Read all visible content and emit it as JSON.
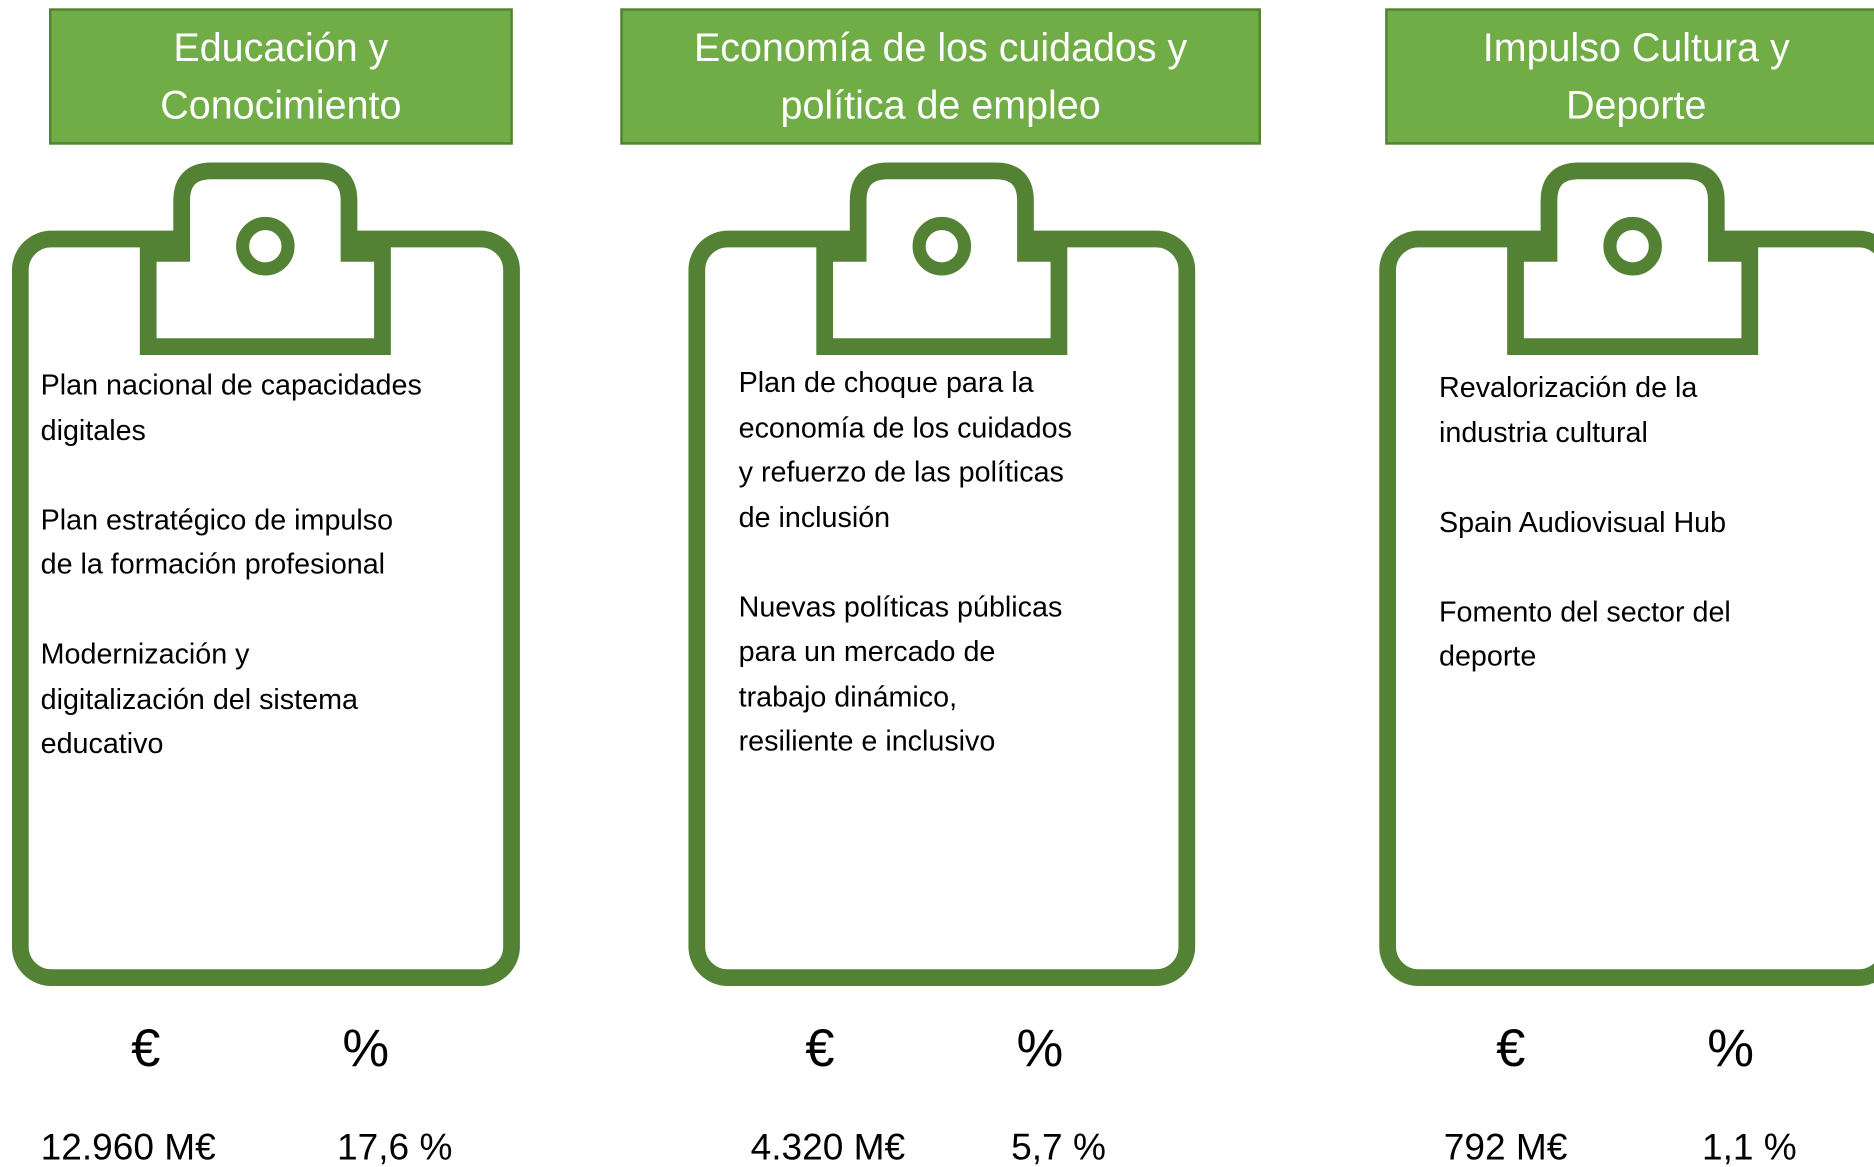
{
  "columns": [
    {
      "title": [
        "Educación y",
        "Conocimiento"
      ],
      "items": [
        [
          "Plan nacional de capacidades",
          "digitales"
        ],
        [
          "Plan estratégico de impulso",
          "de la formación profesional"
        ],
        [
          "Modernización y",
          "digitalización del sistema",
          "educativo"
        ]
      ],
      "euro_symbol": "€",
      "percent_symbol": "%",
      "amount": "12.960 M€",
      "share": "17,6 %"
    },
    {
      "title": [
        "Economía de los cuidados y",
        "política de empleo"
      ],
      "items": [
        [
          "Plan de choque para la",
          "economía de los cuidados",
          "y refuerzo de las políticas",
          "de inclusión"
        ],
        [
          "Nuevas políticas públicas",
          "para un mercado de",
          "trabajo dinámico,",
          "resiliente e inclusivo"
        ]
      ],
      "euro_symbol": "€",
      "percent_symbol": "%",
      "amount": "4.320 M€",
      "share": "5,7 %"
    },
    {
      "title": [
        "Impulso Cultura y",
        "Deporte"
      ],
      "items": [
        [
          "Revalorización de la",
          "industria cultural"
        ],
        [
          "Spain Audiovisual Hub"
        ],
        [
          "Fomento del sector del",
          "deporte"
        ]
      ],
      "euro_symbol": "€",
      "percent_symbol": "%",
      "amount": "792 M€",
      "share": "1,1 %"
    }
  ]
}
